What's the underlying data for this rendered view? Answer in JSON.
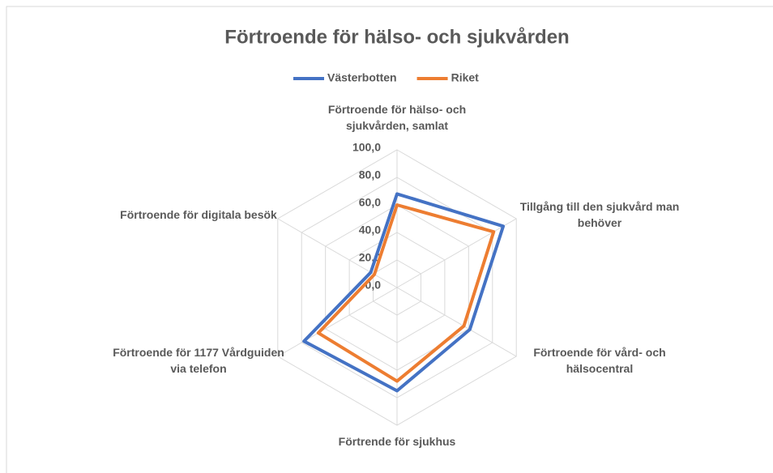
{
  "chart_data": {
    "type": "radar",
    "title": "Förtroende för hälso- och sjukvården",
    "categories": [
      "Förtroende för hälso- och sjukvården, samlat",
      "Tillgång till den sjukvård man behöver",
      "Förtroende för vård- och hälsocentral",
      "Förtrende för sjukhus",
      "Förtroende för 1177 Vårdguiden via telefon",
      "Förtroende för digitala besök"
    ],
    "series": [
      {
        "name": "Västerbotten",
        "color": "#4472c4",
        "values": [
          68,
          89,
          61,
          75,
          78,
          22
        ]
      },
      {
        "name": "Riket",
        "color": "#ed7d31",
        "values": [
          60,
          81,
          56,
          68,
          66,
          19
        ]
      }
    ],
    "rlim": [
      0,
      100
    ],
    "rticks": [
      {
        "value": 0,
        "label": "0,0"
      },
      {
        "value": 20,
        "label": "20,0"
      },
      {
        "value": 40,
        "label": "40,0"
      },
      {
        "value": 60,
        "label": "60,0"
      },
      {
        "value": 80,
        "label": "80,0"
      },
      {
        "value": 100,
        "label": "100,0"
      }
    ],
    "grid": true,
    "legend": "top"
  }
}
